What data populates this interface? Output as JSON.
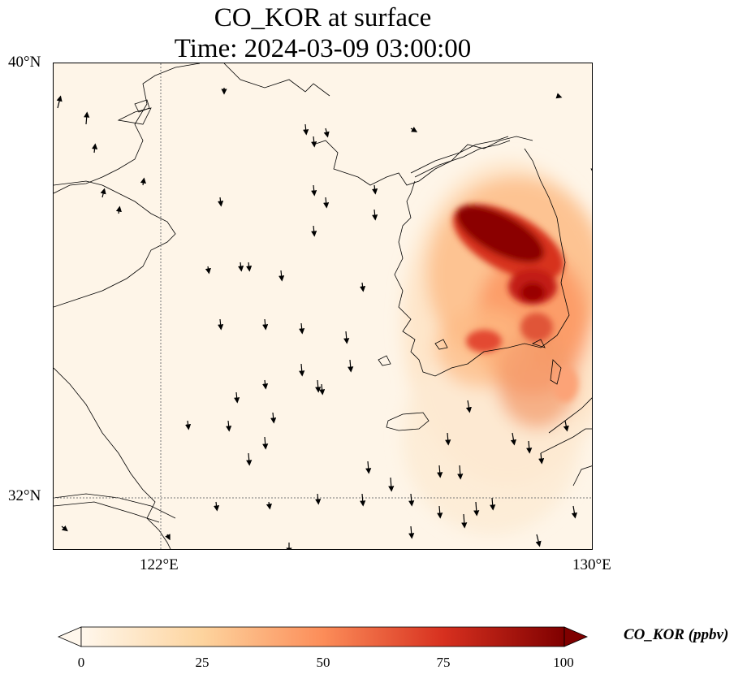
{
  "title": {
    "line1": "CO_KOR at surface",
    "line2": "Time: 2024-03-09 03:00:00"
  },
  "axes": {
    "lat_ticks": [
      "40°N",
      "32°N"
    ],
    "lon_ticks": [
      "122°E",
      "130°E"
    ]
  },
  "colorbar": {
    "label": "CO_KOR (ppbv)",
    "ticks": [
      "0",
      "25",
      "50",
      "75",
      "100"
    ],
    "colormap": "OrRd",
    "range": [
      0,
      100
    ],
    "extend": "both",
    "colors": [
      "#fff7ec",
      "#fdd49e",
      "#fc8d59",
      "#d7301f",
      "#7f0000"
    ]
  },
  "map": {
    "background_color": "#fef5e8",
    "coastline_color": "#000000",
    "gridline_style": "dotted",
    "wind_vectors": "black arrows, mostly pointing south"
  }
}
